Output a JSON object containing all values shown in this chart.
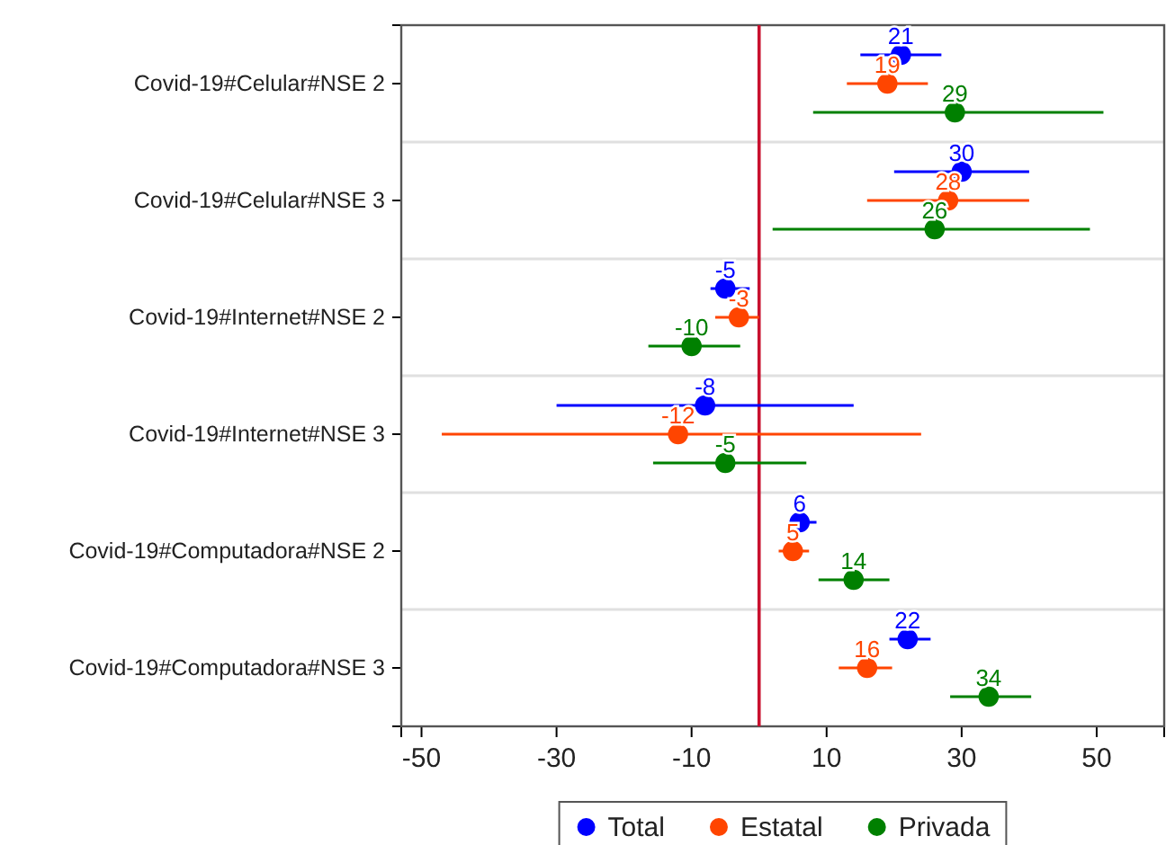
{
  "chart_data": {
    "type": "scatter",
    "orientation": "horizontal",
    "categories": [
      "Covid-19#Celular#NSE 2",
      "Covid-19#Celular#NSE 3",
      "Covid-19#Internet#NSE 2",
      "Covid-19#Internet#NSE 3",
      "Covid-19#Computadora#NSE 2",
      "Covid-19#Computadora#NSE 3"
    ],
    "series": [
      {
        "name": "Total",
        "color": "#0000ff",
        "values": [
          21,
          30,
          -5,
          -8,
          6,
          22
        ],
        "errors": [
          [
            15,
            27
          ],
          [
            20,
            40
          ],
          [
            -7.2,
            -1.4
          ],
          [
            -30,
            14
          ],
          [
            4.6,
            8.5
          ],
          [
            19.3,
            25.4
          ]
        ]
      },
      {
        "name": "Estatal",
        "color": "#ff4500",
        "values": [
          19,
          28,
          -3,
          -12,
          5,
          16
        ],
        "errors": [
          [
            13,
            25
          ],
          [
            16,
            40
          ],
          [
            -6.5,
            0
          ],
          [
            -47,
            24
          ],
          [
            2.9,
            7.4
          ],
          [
            11.8,
            19.7
          ]
        ]
      },
      {
        "name": "Privada",
        "color": "#008000",
        "values": [
          29,
          26,
          -10,
          -5,
          14,
          34
        ],
        "errors": [
          [
            8,
            51
          ],
          [
            2,
            49
          ],
          [
            -16.4,
            -2.8
          ],
          [
            -15.7,
            7
          ],
          [
            8.8,
            19.3
          ],
          [
            28.3,
            40.3
          ]
        ]
      }
    ],
    "xlim": [
      -53,
      60
    ],
    "xticks": [
      -50,
      -30,
      -10,
      10,
      30,
      50
    ],
    "ref_lines": [
      {
        "axis": "x",
        "value": 0,
        "color": "#c8102e"
      }
    ],
    "data_labels": true,
    "grid": "y",
    "legend": "bottom",
    "marker": "circle"
  }
}
